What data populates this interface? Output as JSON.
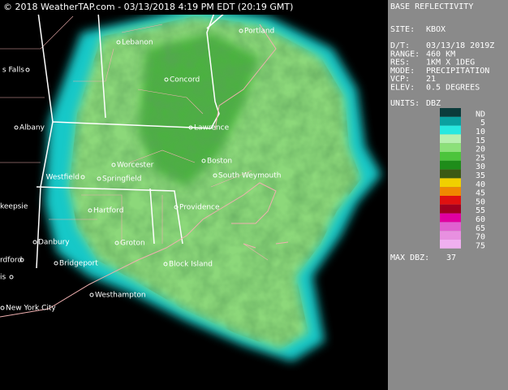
{
  "header": "© 2018 WeatherTAP.com - 03/13/2018  4:19 PM EDT (20:19 GMT)",
  "map": {
    "cities": [
      "Portland",
      "Lebanon",
      "s Falls",
      "Concord",
      "Lawrence",
      "Albany",
      "Worcester",
      "Boston",
      "South Weymouth",
      "Westfield",
      "Springfield",
      "keepsie",
      "Hartford",
      "Providence",
      "Danbury",
      "Groton",
      "rdford",
      "Bridgeport",
      "Block Island",
      "is",
      "Westhampton",
      "New York City"
    ]
  },
  "panel": {
    "title": "BASE REFLECTIVITY",
    "site": {
      "label": "SITE:",
      "value": "KBOX"
    },
    "details": [
      {
        "label": "D/T:",
        "value": "03/13/18 2019Z"
      },
      {
        "label": "RANGE:",
        "value": "460 KM"
      },
      {
        "label": "RES:",
        "value": "1KM X 1DEG"
      },
      {
        "label": "MODE:",
        "value": "PRECIPITATION"
      },
      {
        "label": "VCP:",
        "value": "21"
      },
      {
        "label": "ELEV:",
        "value": "0.5 DEGREES"
      }
    ],
    "units": {
      "label": "UNITS:",
      "value": "DBZ"
    },
    "legend": [
      {
        "label": "ND",
        "color": "#0b3b3b"
      },
      {
        "label": "5",
        "color": "#0aa0a0"
      },
      {
        "label": "10",
        "color": "#28e8e0"
      },
      {
        "label": "15",
        "color": "#b8f0b0"
      },
      {
        "label": "20",
        "color": "#8ce07a"
      },
      {
        "label": "25",
        "color": "#4cc43c"
      },
      {
        "label": "30",
        "color": "#1e8c1a"
      },
      {
        "label": "35",
        "color": "#3c5a14"
      },
      {
        "label": "40",
        "color": "#f0d000"
      },
      {
        "label": "45",
        "color": "#f08800"
      },
      {
        "label": "50",
        "color": "#e01010"
      },
      {
        "label": "55",
        "color": "#a00020"
      },
      {
        "label": "60",
        "color": "#e000a0"
      },
      {
        "label": "65",
        "color": "#e060d0"
      },
      {
        "label": "70",
        "color": "#e890e0"
      },
      {
        "label": "75",
        "color": "#f0b0f0"
      }
    ],
    "max_dbz": {
      "label": "MAX DBZ:",
      "value": "37"
    }
  }
}
